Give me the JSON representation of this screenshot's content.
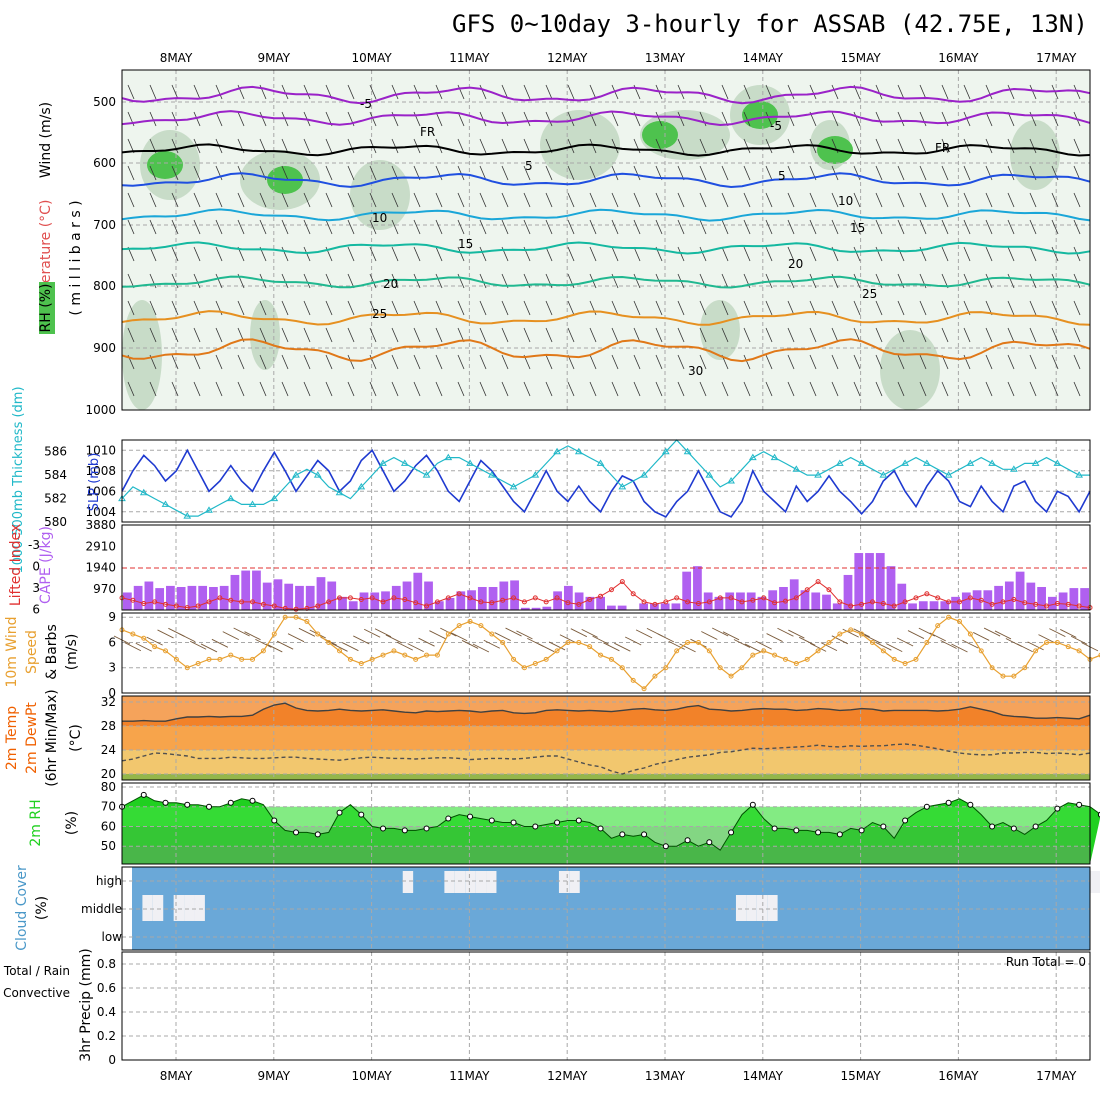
{
  "title": "GFS 0~10day 3-hourly for ASSAB (42.75E, 13N)",
  "dates": [
    "8MAY",
    "9MAY",
    "10MAY",
    "11MAY",
    "12MAY",
    "13MAY",
    "14MAY",
    "15MAY",
    "16MAY",
    "17MAY"
  ],
  "colors": {
    "rh_green": "#4ec24e",
    "temp_purple": "#9a22c8",
    "temp_blue": "#1f4fe0",
    "temp_cyan": "#1aa6d8",
    "temp_teal": "#14b8a0",
    "temp_orange": "#e69020",
    "slp": "#1f3ad0",
    "thickness": "#20b8c8",
    "lifted": "#e03030",
    "cape": "#b060f0",
    "wind10": "#e8a030",
    "temp2m": "#f06000",
    "rh2m": "#20d020",
    "cloud": "#6aa8d8"
  },
  "panels": {
    "upper": {
      "ylabels": {
        "wind": "Wind (m/s)",
        "temperature": "Temperature (°C)",
        "rh": "RH (%)",
        "axis": "( m i l l i b a r s )"
      },
      "yticks": [
        "500",
        "600",
        "700",
        "800",
        "900",
        "1000"
      ],
      "contour_labels": [
        "-5",
        "-5",
        "5",
        "5",
        "10",
        "10",
        "15",
        "15",
        "20",
        "20",
        "25",
        "25",
        "30",
        "FR",
        "FR"
      ]
    },
    "slp": {
      "ylabels": {
        "thickness": "1000-500mb Thickness (dm)",
        "slp": "SLP (mb)"
      },
      "left_ticks": [
        "586",
        "584",
        "582",
        "580"
      ],
      "right_ticks": [
        "1010",
        "1008",
        "1006",
        "1004"
      ]
    },
    "cape": {
      "ylabels": {
        "lifted": "Lifted Index",
        "cape": "CAPE (J/kg)"
      },
      "left_ticks": [
        "-3",
        "0",
        "3",
        "6"
      ],
      "right_ticks": [
        "3880",
        "2910",
        "1940",
        "970"
      ]
    },
    "wind10m": {
      "ylabels": {
        "l1": "10m Wind",
        "l2": "Speed",
        "l3": "& Barbs",
        "unit": "(m/s)"
      },
      "yticks": [
        "9",
        "6",
        "3",
        "0"
      ]
    },
    "temp2m": {
      "ylabels": {
        "l1": "2m Temp",
        "l2": "2m DewPt",
        "l3": "(6hr Min/Max)",
        "unit": "(°C)"
      },
      "yticks": [
        "32",
        "28",
        "24",
        "20"
      ]
    },
    "rh2m": {
      "ylabels": {
        "l1": "2m RH",
        "unit": "(%)"
      },
      "yticks": [
        "80",
        "70",
        "60",
        "50"
      ]
    },
    "cloud": {
      "ylabels": {
        "l1": "Cloud Cover",
        "unit": "(%)"
      },
      "levels": [
        "high",
        "middle",
        "low"
      ]
    },
    "precip": {
      "ylabels": {
        "l1": "Total / Rain",
        "l2": "Convective",
        "l3": "3hr Precip (mm)"
      },
      "yticks": [
        "0.8",
        "0.6",
        "0.4",
        "0.2",
        "0"
      ],
      "run_total": "Run Total = 0"
    }
  },
  "chart_data": [
    {
      "type": "line",
      "name": "SLP",
      "units": "mb",
      "ylim": [
        1003,
        1011
      ],
      "values": [
        1006,
        1008,
        1009.5,
        1008.5,
        1007,
        1008,
        1010,
        1008,
        1006,
        1007,
        1008.5,
        1007,
        1006,
        1008,
        1009.8,
        1008,
        1006,
        1007.5,
        1009,
        1008,
        1006,
        1007,
        1009,
        1010,
        1008,
        1006,
        1007,
        1008.5,
        1009.5,
        1008,
        1006,
        1005,
        1007,
        1009,
        1008,
        1006.5,
        1005,
        1004,
        1006,
        1008,
        1006,
        1005,
        1006.5,
        1005,
        1004,
        1006,
        1007.5,
        1007,
        1005,
        1004,
        1003.5,
        1005,
        1006,
        1008,
        1006,
        1004,
        1003.5,
        1005,
        1008,
        1006,
        1005,
        1004,
        1006.5,
        1005,
        1006,
        1007.5,
        1006,
        1005,
        1003.8,
        1005,
        1007,
        1008,
        1006,
        1004.5,
        1006.5,
        1008,
        1007,
        1005,
        1004.5,
        1006.5,
        1005,
        1004,
        1006.5,
        1007,
        1005,
        1004,
        1006,
        1005.5,
        1004,
        1006
      ]
    },
    {
      "type": "line",
      "name": "Thickness",
      "units": "dm",
      "ylim": [
        580,
        587
      ],
      "values": [
        582,
        583,
        582.5,
        582,
        581.5,
        581,
        580.5,
        580.5,
        581,
        581.5,
        582,
        581.5,
        581.5,
        581.5,
        582,
        583,
        584,
        584.5,
        584,
        583,
        582.5,
        582,
        583,
        584,
        585,
        585.5,
        585,
        584.5,
        584,
        585,
        585.5,
        585.5,
        585,
        584.5,
        584,
        583.5,
        583,
        583.5,
        584,
        585,
        586,
        586.5,
        586,
        585.5,
        585,
        584,
        583,
        583.5,
        584,
        585,
        586,
        587,
        586,
        585,
        584,
        583,
        583.5,
        584.5,
        585.5,
        586,
        585.5,
        585,
        584.5,
        584,
        584,
        584.5,
        585,
        585.5,
        585,
        584.5,
        584,
        584.5,
        585,
        585.5,
        585,
        584.5,
        584,
        584.5,
        585,
        585.5,
        585,
        584.5,
        584.5,
        585,
        585,
        585.5,
        585,
        584.5,
        584,
        584
      ]
    },
    {
      "type": "bar",
      "name": "CAPE",
      "units": "J/kg",
      "ylim": [
        0,
        3880
      ],
      "values": [
        800,
        1100,
        1300,
        1000,
        1100,
        1050,
        1100,
        1100,
        1050,
        1100,
        1600,
        1800,
        1800,
        1250,
        1400,
        1200,
        1100,
        1100,
        1500,
        1300,
        600,
        400,
        800,
        800,
        850,
        1100,
        1300,
        1700,
        1300,
        400,
        550,
        850,
        900,
        1050,
        1050,
        1300,
        1350,
        100,
        100,
        150,
        850,
        1100,
        800,
        600,
        600,
        200,
        200,
        0,
        300,
        300,
        300,
        300,
        1750,
        2000,
        800,
        600,
        800,
        800,
        800,
        600,
        900,
        1050,
        1400,
        900,
        800,
        700,
        300,
        1600,
        2600,
        2600,
        2600,
        2000,
        1200,
        300,
        400,
        400,
        400,
        600,
        800,
        900,
        900,
        1100,
        1300,
        1750,
        1250,
        1050,
        600,
        800,
        1000,
        1000
      ]
    },
    {
      "type": "line",
      "name": "Lifted Index",
      "ylim": [
        -4.5,
        6
      ],
      "values": [
        -3,
        -3.3,
        -3.7,
        -3.5,
        -3.8,
        -4,
        -4.2,
        -4,
        -3.5,
        -3,
        -3.3,
        -3.5,
        -3.5,
        -3.8,
        -4,
        -4.3,
        -4.4,
        -4.3,
        -4,
        -3.5,
        -3,
        -3,
        -3.2,
        -3,
        -3.5,
        -3,
        -3.2,
        -3.6,
        -4,
        -3.5,
        -3,
        -2.5,
        -3,
        -3.5,
        -3.6,
        -3.3,
        -3,
        -3.5,
        -3,
        -3.5,
        -3,
        -3.6,
        -3.8,
        -3.2,
        -2.8,
        -2,
        -1,
        -2.5,
        -3.5,
        -3.8,
        -3.5,
        -3,
        -3.5,
        -3.7,
        -3.5,
        -3,
        -3,
        -3.5,
        -3.3,
        -3,
        -3.6,
        -3.4,
        -3,
        -2,
        -1,
        -2,
        -3.5,
        -4,
        -3.8,
        -3.5,
        -3.7,
        -4,
        -3.5,
        -3,
        -2.5,
        -3,
        -3.5,
        -3.5,
        -3,
        -3.3,
        -3.8,
        -3.5,
        -3.2,
        -3.6,
        -3.8,
        -4,
        -3.7,
        -3.8,
        -4,
        -4.2
      ]
    },
    {
      "type": "line",
      "name": "10m Wind Speed",
      "units": "m/s",
      "ylim": [
        0,
        9.5
      ],
      "values": [
        7.5,
        7,
        6.5,
        5.5,
        5,
        4,
        3,
        3.5,
        4,
        4,
        4.5,
        4,
        4,
        5,
        7,
        9,
        9,
        8.5,
        7,
        6,
        5,
        4,
        3.5,
        4,
        4.5,
        5,
        4.5,
        4,
        4.5,
        4.5,
        7,
        8,
        8.5,
        8,
        7,
        6,
        4,
        3,
        3.5,
        4,
        5,
        6,
        6,
        5.5,
        4.5,
        4,
        3,
        1.5,
        0.5,
        2,
        3,
        5,
        6,
        6,
        5,
        3,
        2,
        3,
        4.5,
        5,
        4.5,
        4,
        3.5,
        4,
        5,
        6,
        7,
        7.5,
        7,
        6,
        5,
        4,
        3.5,
        4,
        6,
        8,
        9,
        8.5,
        7,
        5,
        3,
        2,
        2,
        3,
        5,
        6,
        6,
        5.5,
        5,
        4,
        4.5,
        5.5
      ]
    },
    {
      "type": "area",
      "name": "2m Temp",
      "units": "°C",
      "ylim": [
        19,
        33
      ],
      "values": [
        28.8,
        28.8,
        28.9,
        28.8,
        28.8,
        29.2,
        29.5,
        29.5,
        29.6,
        29.5,
        29.6,
        29.6,
        29.8,
        30.8,
        31.5,
        31.8,
        31,
        30.6,
        30.5,
        30.6,
        30.8,
        30.6,
        30.5,
        30.6,
        30.7,
        30.5,
        30.3,
        30.2,
        30.5,
        30.4,
        30.5,
        30.6,
        30.5,
        30.3,
        30.5,
        30.6,
        30.2,
        30.1,
        30.2,
        30.6,
        30.7,
        30.6,
        30.5,
        30.6,
        30.5,
        30.4,
        30.6,
        30.8,
        30.9,
        30.7,
        30.6,
        30.8,
        31.2,
        31.4,
        30.8,
        30.7,
        30.5,
        30.6,
        30.8,
        30.9,
        30.8,
        30.8,
        30.6,
        30.7,
        30.9,
        30.8,
        30.6,
        30.7,
        30.9,
        30.8,
        30.5,
        30.6,
        30.6,
        30.6,
        30.6,
        30.5,
        30.6,
        30.8,
        31.2,
        30.8,
        30.4,
        29.8,
        29.6,
        29.5,
        29.3,
        29.3,
        29.4,
        29.3,
        29.2,
        29.8
      ]
    },
    {
      "type": "line",
      "name": "2m DewPt",
      "units": "°C",
      "ylim": [
        19,
        33
      ],
      "values": [
        22.2,
        22.5,
        23,
        23.5,
        23.4,
        23.2,
        23,
        22.6,
        22.6,
        22.6,
        22.8,
        22.7,
        22.6,
        22.6,
        22.7,
        22.8,
        22.8,
        22.6,
        22.5,
        22.4,
        22.3,
        22.5,
        22.7,
        22.8,
        22.7,
        22.6,
        22.6,
        22.5,
        22.6,
        22.7,
        22.7,
        22.6,
        22.4,
        22.5,
        22.6,
        22.6,
        22.5,
        22.6,
        22.8,
        23,
        23,
        22.5,
        22,
        21.5,
        21.2,
        20.5,
        20,
        20.6,
        21,
        21.6,
        22,
        22.4,
        22.8,
        23,
        23.2,
        23.6,
        23.7,
        24,
        24.3,
        24.2,
        24.3,
        24.4,
        24.5,
        24.6,
        24.8,
        24.6,
        24.5,
        24.7,
        24.6,
        24.7,
        24.7,
        24.9,
        25,
        24.8,
        24.5,
        24.2,
        23.8,
        23.5,
        23.3,
        23.2,
        23.2,
        23.5,
        23.5,
        23.6,
        23.6,
        23.4,
        23.5,
        23.4,
        23.2,
        23.5
      ]
    },
    {
      "type": "area",
      "name": "2m RH",
      "units": "%",
      "ylim": [
        41,
        82
      ],
      "values": [
        70,
        73,
        76,
        73,
        72,
        72,
        71,
        71,
        70,
        70,
        72,
        74,
        73,
        71,
        63,
        58,
        57,
        57,
        56,
        57,
        67,
        71,
        66,
        60,
        59,
        59,
        58,
        58,
        59,
        60,
        64,
        66,
        65,
        64,
        63,
        62,
        62,
        60,
        60,
        61,
        62,
        63,
        63,
        62,
        59,
        54,
        56,
        55,
        56,
        52,
        50,
        50,
        53,
        50,
        52,
        48,
        57,
        66,
        71,
        64,
        59,
        59,
        58,
        58,
        57,
        57,
        56,
        59,
        58,
        62,
        60,
        54,
        63,
        67,
        70,
        71,
        72,
        74,
        71,
        66,
        60,
        62,
        59,
        56,
        60,
        63,
        69,
        72,
        71,
        70,
        66
      ]
    },
    {
      "type": "bar",
      "name": "Cloud Cover",
      "levels": [
        "high",
        "middle",
        "low"
      ],
      "high": [
        0,
        0,
        0,
        0,
        0,
        0,
        0,
        0,
        0,
        0,
        0,
        0,
        0,
        0,
        0,
        0,
        0,
        0,
        0,
        0,
        0,
        0,
        0,
        0,
        0,
        0,
        1,
        0,
        0,
        0,
        1,
        1,
        1,
        1,
        1,
        0,
        0,
        0,
        0,
        0,
        0,
        1,
        1,
        0,
        0,
        0,
        0,
        0,
        0,
        0,
        0,
        0,
        0,
        0,
        0,
        0,
        0,
        0,
        0,
        0,
        0,
        0,
        0,
        0,
        0,
        0,
        0,
        0,
        0,
        0,
        0,
        0,
        0,
        0,
        0,
        0,
        0,
        0,
        0,
        0,
        0,
        0,
        0,
        0,
        0,
        0,
        0,
        0,
        0,
        0,
        0,
        0,
        1
      ],
      "middle": [
        0,
        1,
        1,
        0,
        1,
        1,
        1,
        0,
        0,
        0,
        0,
        0,
        0,
        0,
        0,
        0,
        0,
        0,
        0,
        0,
        0,
        0,
        0,
        0,
        0,
        0,
        0,
        0,
        0,
        0,
        0,
        0,
        0,
        0,
        0,
        0,
        0,
        0,
        0,
        0,
        0,
        0,
        0,
        0,
        0,
        0,
        0,
        0,
        0,
        0,
        0,
        0,
        0,
        0,
        0,
        0,
        0,
        0,
        1,
        1,
        1,
        1,
        0,
        0,
        0,
        0,
        0,
        0,
        0,
        0,
        0,
        0,
        0,
        0,
        0,
        0,
        0,
        0,
        0,
        0,
        0,
        0,
        0,
        0,
        0,
        0,
        0,
        0,
        0,
        0,
        0,
        0
      ]
    },
    {
      "type": "bar",
      "name": "3hr Precip",
      "units": "mm",
      "ylim": [
        0,
        0.9
      ],
      "values": []
    }
  ]
}
